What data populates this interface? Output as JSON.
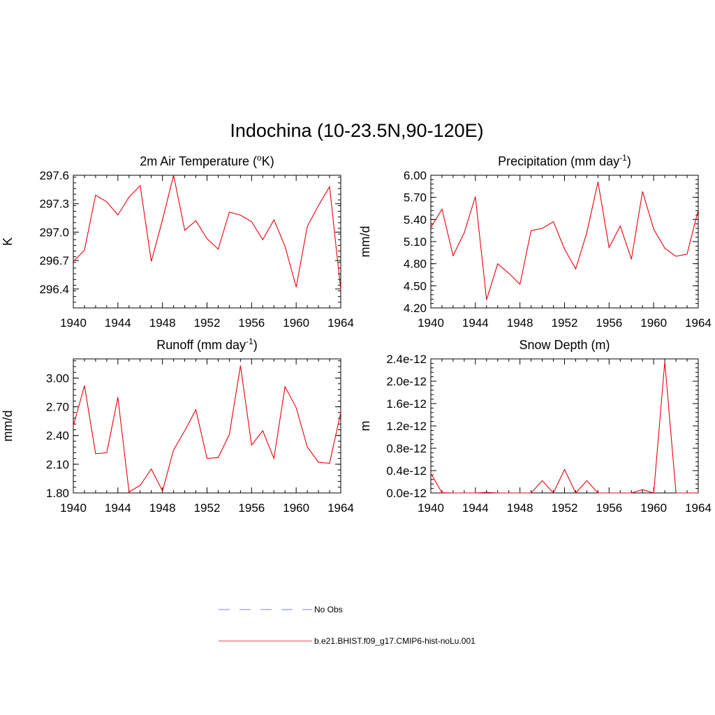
{
  "figure": {
    "title": "Indochina (10-23.5N,90-120E)"
  },
  "legend": {
    "entries": [
      {
        "label": "No Obs",
        "color": "#9999ee",
        "dash": true
      },
      {
        "label": "b.e21.BHIST.f09_g17.CMIP6-hist-noLu.001",
        "color": "#ff6666",
        "dash": false
      }
    ]
  },
  "chart_data": [
    {
      "type": "line",
      "title": "2m Air Temperature",
      "title_sup": "o",
      "title_pre": "2m Air Temperature (",
      "title_post": "K)",
      "ylabel": "K",
      "xlim": [
        1940,
        1964
      ],
      "ylim": [
        296.2,
        297.6
      ],
      "xticks": [
        1940,
        1944,
        1948,
        1952,
        1956,
        1960,
        1964
      ],
      "xtick_labels": [
        "1940",
        "1944",
        "1948",
        "1952",
        "1956",
        "1960",
        "1964"
      ],
      "yticks": [
        296.4,
        296.7,
        297.0,
        297.3,
        297.6
      ],
      "ytick_labels": [
        "296.4",
        "296.7",
        "297.0",
        "297.3",
        "297.6"
      ],
      "yminor": 0.06,
      "color": "#e8000b",
      "series": [
        {
          "x": [
            1940,
            1941,
            1942,
            1943,
            1944,
            1945,
            1946,
            1947,
            1948,
            1949,
            1950,
            1951,
            1952,
            1953,
            1954,
            1955,
            1956,
            1957,
            1958,
            1959,
            1960,
            1961,
            1962,
            1963,
            1964
          ],
          "values": [
            296.69,
            296.81,
            297.39,
            297.32,
            297.18,
            297.37,
            297.49,
            296.69,
            297.13,
            297.6,
            297.02,
            297.12,
            296.93,
            296.82,
            297.21,
            297.18,
            297.11,
            296.92,
            297.13,
            296.85,
            296.42,
            297.06,
            297.28,
            297.48,
            296.39
          ]
        }
      ]
    },
    {
      "type": "line",
      "title": "Precipitation",
      "title_sup": "-1",
      "title_pre": "Precipitation (mm day",
      "title_post": ")",
      "ylabel": "mm/d",
      "xlim": [
        1940,
        1964
      ],
      "ylim": [
        4.2,
        6.0
      ],
      "xticks": [
        1940,
        1944,
        1948,
        1952,
        1956,
        1960,
        1964
      ],
      "xtick_labels": [
        "1940",
        "1944",
        "1948",
        "1952",
        "1956",
        "1960",
        "1964"
      ],
      "yticks": [
        4.2,
        4.5,
        4.8,
        5.1,
        5.4,
        5.7,
        6.0
      ],
      "ytick_labels": [
        "4.20",
        "4.50",
        "4.80",
        "5.10",
        "5.40",
        "5.70",
        "6.00"
      ],
      "yminor": 0.06,
      "color": "#e8000b",
      "series": [
        {
          "x": [
            1940,
            1941,
            1942,
            1943,
            1944,
            1945,
            1946,
            1947,
            1948,
            1949,
            1950,
            1951,
            1952,
            1953,
            1954,
            1955,
            1956,
            1957,
            1958,
            1959,
            1960,
            1961,
            1962,
            1963,
            1964
          ],
          "values": [
            5.29,
            5.54,
            4.91,
            5.22,
            5.71,
            4.31,
            4.8,
            4.67,
            4.52,
            5.25,
            5.28,
            5.37,
            5.0,
            4.73,
            5.22,
            5.91,
            5.02,
            5.31,
            4.86,
            5.78,
            5.27,
            5.01,
            4.9,
            4.93,
            5.53
          ]
        }
      ]
    },
    {
      "type": "line",
      "title": "Runoff",
      "title_sup": "-1",
      "title_pre": "Runoff (mm day",
      "title_post": ")",
      "ylabel": "mm/d",
      "xlim": [
        1940,
        1964
      ],
      "ylim": [
        1.8,
        3.2
      ],
      "xticks": [
        1940,
        1944,
        1948,
        1952,
        1956,
        1960,
        1964
      ],
      "xtick_labels": [
        "1940",
        "1944",
        "1948",
        "1952",
        "1956",
        "1960",
        "1964"
      ],
      "yticks": [
        1.8,
        2.1,
        2.4,
        2.7,
        3.0
      ],
      "ytick_labels": [
        "1.80",
        "2.10",
        "2.40",
        "2.70",
        "3.00"
      ],
      "yminor": 0.06,
      "color": "#e8000b",
      "series": [
        {
          "x": [
            1940,
            1941,
            1942,
            1943,
            1944,
            1945,
            1946,
            1947,
            1948,
            1949,
            1950,
            1951,
            1952,
            1953,
            1954,
            1955,
            1956,
            1957,
            1958,
            1959,
            1960,
            1961,
            1962,
            1963,
            1964
          ],
          "values": [
            2.5,
            2.92,
            2.21,
            2.22,
            2.8,
            1.81,
            1.88,
            2.05,
            1.82,
            2.25,
            2.45,
            2.67,
            2.16,
            2.17,
            2.41,
            3.13,
            2.3,
            2.45,
            2.16,
            2.91,
            2.69,
            2.28,
            2.12,
            2.11,
            2.64
          ]
        }
      ]
    },
    {
      "type": "line",
      "title": "Snow Depth (m)",
      "title_sup": "",
      "title_pre": "Snow Depth (m)",
      "title_post": "",
      "ylabel": "m",
      "xlim": [
        1940,
        1964
      ],
      "ylim": [
        0.0,
        2.4e-12
      ],
      "xticks": [
        1940,
        1944,
        1948,
        1952,
        1956,
        1960,
        1964
      ],
      "xtick_labels": [
        "1940",
        "1944",
        "1948",
        "1952",
        "1956",
        "1960",
        "1964"
      ],
      "yticks": [
        0.0,
        4e-13,
        8e-13,
        1.2e-12,
        1.6e-12,
        2e-12,
        2.4e-12
      ],
      "ytick_labels": [
        "0.0e-12",
        "0.4e-12",
        "0.8e-12",
        "1.2e-12",
        "1.6e-12",
        "2.0e-12",
        "2.4e-12"
      ],
      "yminor": 8e-14,
      "color": "#e8000b",
      "series": [
        {
          "x": [
            1940,
            1941,
            1942,
            1943,
            1944,
            1945,
            1946,
            1947,
            1948,
            1949,
            1950,
            1951,
            1952,
            1953,
            1954,
            1955,
            1956,
            1957,
            1958,
            1959,
            1960,
            1961,
            1962,
            1963,
            1964
          ],
          "values": [
            3.5e-13,
            5e-15,
            0,
            0,
            0,
            1e-14,
            0,
            0,
            0,
            0,
            2.2e-13,
            0,
            4.2e-13,
            0,
            2.2e-13,
            0,
            0,
            0,
            0,
            6e-14,
            0,
            2.35e-12,
            0,
            0,
            0
          ]
        }
      ]
    }
  ]
}
